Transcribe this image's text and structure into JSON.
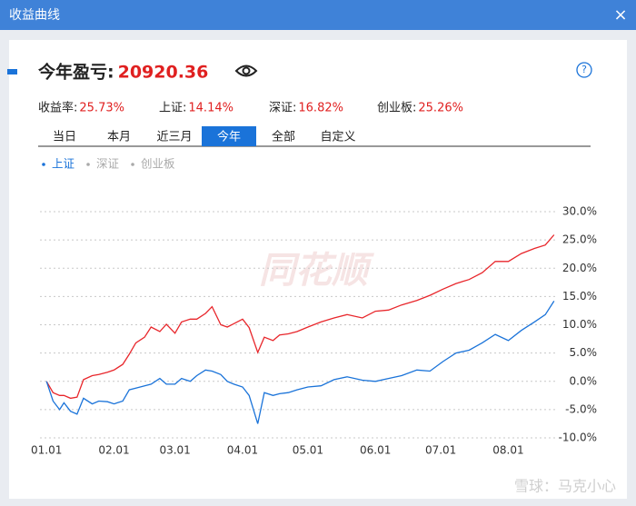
{
  "window": {
    "title": "收益曲线",
    "close": "×"
  },
  "summary": {
    "label": "今年盈亏:",
    "value": "20920.36"
  },
  "help": "?",
  "stats": [
    {
      "label": "收益率:",
      "value": "25.73%"
    },
    {
      "label": "上证:",
      "value": "14.14%"
    },
    {
      "label": "深证:",
      "value": "16.82%"
    },
    {
      "label": "创业板:",
      "value": "25.26%"
    }
  ],
  "tabs": [
    {
      "label": "当日",
      "active": false
    },
    {
      "label": "本月",
      "active": false
    },
    {
      "label": "近三月",
      "active": false
    },
    {
      "label": "今年",
      "active": true
    },
    {
      "label": "全部",
      "active": false
    },
    {
      "label": "自定义",
      "active": false
    }
  ],
  "legend": [
    {
      "label": "上证",
      "color": "#1a73d9",
      "active": true
    },
    {
      "label": "深证",
      "color": "#aaaaaa",
      "active": false
    },
    {
      "label": "创业板",
      "color": "#aaaaaa",
      "active": false
    }
  ],
  "watermark": "同花顺",
  "footer": "雪球：马克小心",
  "chart_data": {
    "type": "line",
    "x": [
      0,
      3,
      6,
      8,
      11,
      14,
      17,
      21,
      24,
      28,
      31,
      35,
      38,
      41,
      45,
      48,
      52,
      55,
      59,
      62,
      66,
      69,
      73,
      76,
      80,
      83,
      86,
      90,
      93,
      97,
      100,
      104,
      107,
      111,
      115,
      120,
      126,
      132,
      138,
      145,
      151,
      157,
      163,
      170,
      176,
      182,
      188,
      194,
      200,
      206,
      212,
      218,
      224,
      229,
      233
    ],
    "xlim": [
      -3,
      236
    ],
    "xticks": [
      {
        "value": 0,
        "label": "01.01"
      },
      {
        "value": 31,
        "label": "02.01"
      },
      {
        "value": 59,
        "label": "03.01"
      },
      {
        "value": 90,
        "label": "04.01"
      },
      {
        "value": 120,
        "label": "05.01"
      },
      {
        "value": 151,
        "label": "06.01"
      },
      {
        "value": 181,
        "label": "07.01"
      },
      {
        "value": 212,
        "label": "08.01"
      }
    ],
    "ylim": [
      -10,
      30
    ],
    "yticks": [
      {
        "value": -10,
        "label": "-10.0%"
      },
      {
        "value": -5,
        "label": "-5.0%"
      },
      {
        "value": 0,
        "label": "0.0%"
      },
      {
        "value": 5,
        "label": "5.0%"
      },
      {
        "value": 10,
        "label": "10.0%"
      },
      {
        "value": 15,
        "label": "15.0%"
      },
      {
        "value": 20,
        "label": "20.0%"
      },
      {
        "value": 25,
        "label": "25.0%"
      },
      {
        "value": 30,
        "label": "30.0%"
      }
    ],
    "grid": true,
    "series": [
      {
        "color": "#e8262b",
        "values": [
          0,
          -2,
          -2.5,
          -2.5,
          -3,
          -2.8,
          0.3,
          1,
          1.2,
          1.6,
          2,
          3,
          4.8,
          6.8,
          7.8,
          9.6,
          8.8,
          10.1,
          8.5,
          10.5,
          11,
          11,
          12,
          13.2,
          10,
          9.6,
          10.2,
          11,
          9.5,
          5.1,
          7.8,
          7.2,
          8.2,
          8.4,
          8.8,
          9.6,
          10.5,
          11.2,
          11.8,
          11.2,
          12.4,
          12.6,
          13.5,
          14.3,
          15.2,
          16.3,
          17.3,
          18,
          19.2,
          21.2,
          21.2,
          22.6,
          23.5,
          24.1,
          25.9
        ]
      },
      {
        "color": "#1a73d9",
        "values": [
          0,
          -3.5,
          -5,
          -3.8,
          -5.3,
          -5.8,
          -3,
          -4,
          -3.5,
          -3.6,
          -4,
          -3.5,
          -1.5,
          -1.2,
          -0.8,
          -0.5,
          0.5,
          -0.5,
          -0.5,
          0.5,
          0,
          1,
          2,
          1.8,
          1.2,
          0,
          -0.5,
          -1,
          -2.5,
          -7.5,
          -2,
          -2.5,
          -2.2,
          -2,
          -1.5,
          -1,
          -0.8,
          0.3,
          0.8,
          0.2,
          0,
          0.5,
          1,
          2,
          1.8,
          3.5,
          5,
          5.5,
          6.8,
          8.3,
          7.2,
          9,
          10.5,
          11.8,
          14.2
        ]
      }
    ]
  }
}
